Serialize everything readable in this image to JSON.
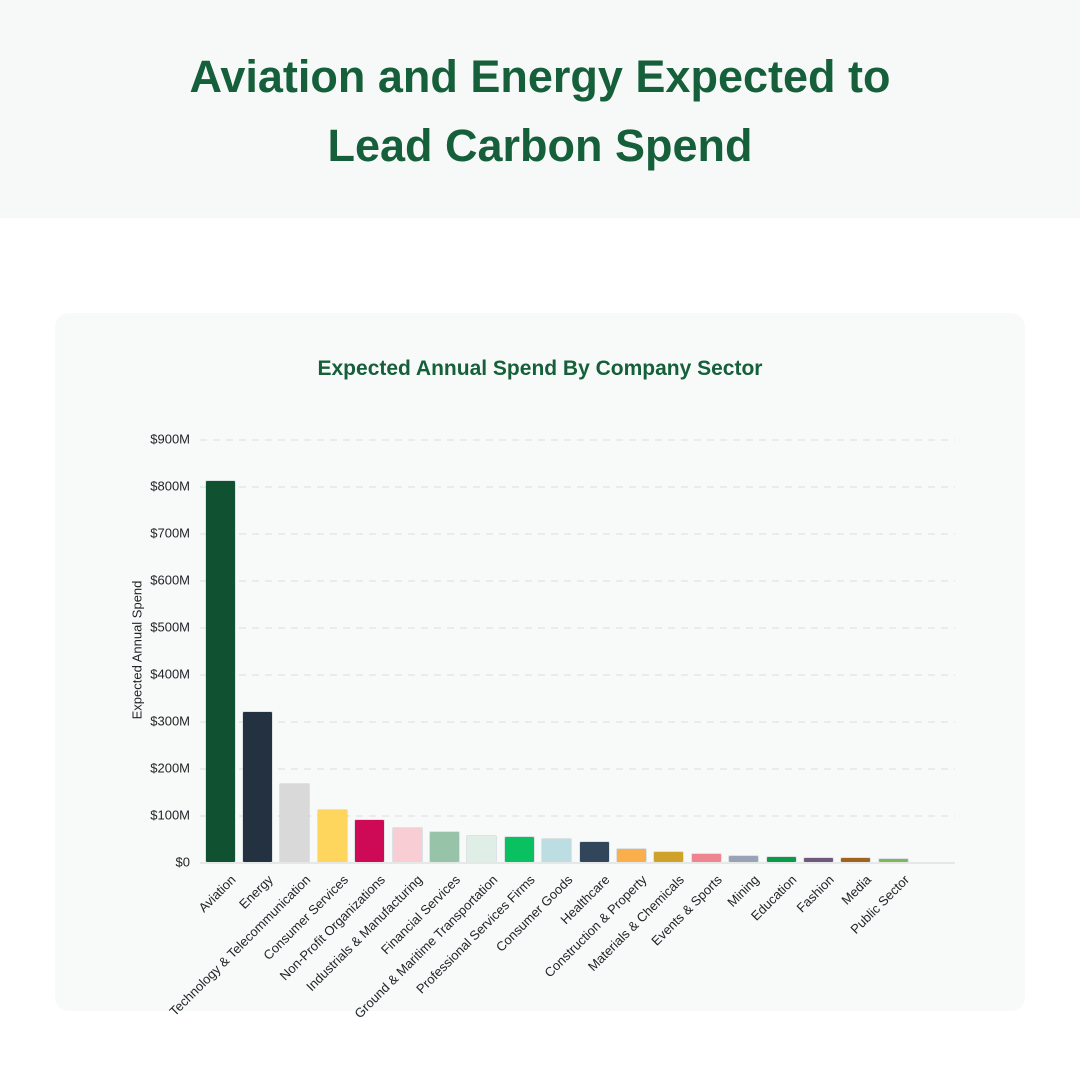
{
  "header": {
    "title_line1": "Aviation and Energy Expected to",
    "title_line2": "Lead Carbon Spend"
  },
  "chart_data": {
    "type": "bar",
    "title": "Expected Annual Spend By Company Sector",
    "xlabel": "",
    "ylabel": "Expected Annual Spend",
    "unit": "USD millions",
    "ylim": [
      0,
      900
    ],
    "ytick_step": 100,
    "ytick_labels": [
      "$0",
      "$100M",
      "$200M",
      "$300M",
      "$400M",
      "$500M",
      "$600M",
      "$700M",
      "$800M",
      "$900M"
    ],
    "grid": "horizontal-dashed",
    "legend": "none",
    "categories": [
      "Aviation",
      "Energy",
      "Technology & Telecommunication",
      "Consumer Services",
      "Non-Profit Organizations",
      "Industrials & Manufacturing",
      "Financial Services",
      "Ground & Maritime Transportation",
      "Professional Services Firms",
      "Consumer Goods",
      "Healthcare",
      "Construction & Property",
      "Materials & Chemicals",
      "Events & Sports",
      "Mining",
      "Education",
      "Fashion",
      "Media",
      "Public Sector"
    ],
    "values": [
      810,
      320,
      165,
      110,
      90,
      72,
      63,
      56,
      53,
      50,
      42,
      27,
      21,
      16,
      13,
      10,
      9,
      8,
      7
    ],
    "bar_colors": [
      "#0F5130",
      "#233140",
      "#D9D9DA",
      "#FED65E",
      "#CE0A56",
      "#F8CED4",
      "#97C4A9",
      "#DFEEE6",
      "#0AC162",
      "#BCDEE2",
      "#32465B",
      "#FBAF4C",
      "#CFA32B",
      "#ED8490",
      "#9AA2B8",
      "#0B9A4A",
      "#6F5A7D",
      "#A0631F",
      "#7CB857"
    ]
  },
  "colors": {
    "title_green": "#15603A",
    "header_bg": "#F7F9F8",
    "card_bg": "#F8FAF9",
    "grid": "#E9ECEB",
    "axis_text": "#1E2226"
  }
}
